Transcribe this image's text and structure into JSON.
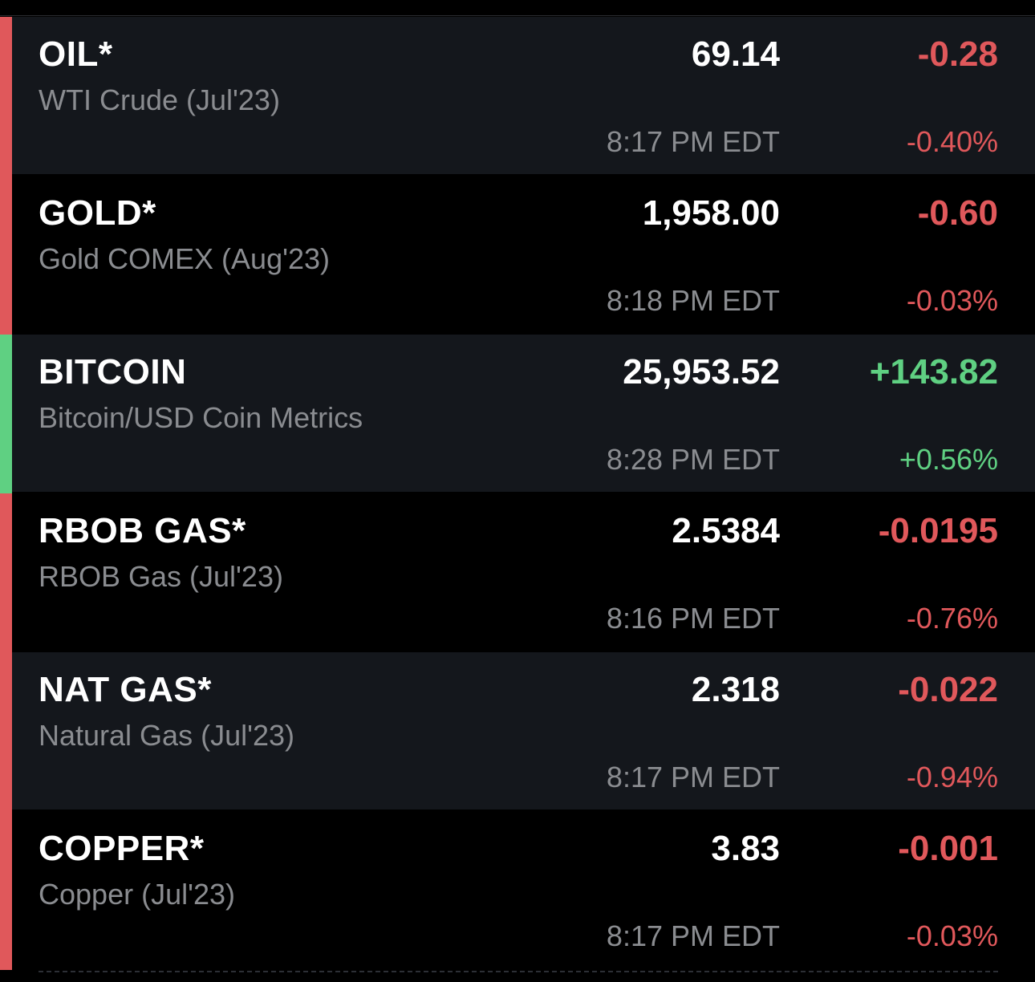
{
  "colors": {
    "down": "#e0585b",
    "up": "#5fd082",
    "row_odd": "#14171c",
    "row_even": "#000000"
  },
  "quotes": [
    {
      "symbol": "OIL*",
      "name": "WTI Crude (Jul'23)",
      "price": "69.14",
      "time": "8:17 PM EDT",
      "change": "-0.28",
      "percent": "-0.40%",
      "direction": "down"
    },
    {
      "symbol": "GOLD*",
      "name": "Gold COMEX (Aug'23)",
      "price": "1,958.00",
      "time": "8:18 PM EDT",
      "change": "-0.60",
      "percent": "-0.03%",
      "direction": "down"
    },
    {
      "symbol": "BITCOIN",
      "name": "Bitcoin/USD Coin Metrics",
      "price": "25,953.52",
      "time": "8:28 PM EDT",
      "change": "+143.82",
      "percent": "+0.56%",
      "direction": "up"
    },
    {
      "symbol": "RBOB GAS*",
      "name": "RBOB Gas (Jul'23)",
      "price": "2.5384",
      "time": "8:16 PM EDT",
      "change": "-0.0195",
      "percent": "-0.76%",
      "direction": "down"
    },
    {
      "symbol": "NAT GAS*",
      "name": "Natural Gas (Jul'23)",
      "price": "2.318",
      "time": "8:17 PM EDT",
      "change": "-0.022",
      "percent": "-0.94%",
      "direction": "down"
    },
    {
      "symbol": "COPPER*",
      "name": "Copper (Jul'23)",
      "price": "3.83",
      "time": "8:17 PM EDT",
      "change": "-0.001",
      "percent": "-0.03%",
      "direction": "down"
    }
  ]
}
